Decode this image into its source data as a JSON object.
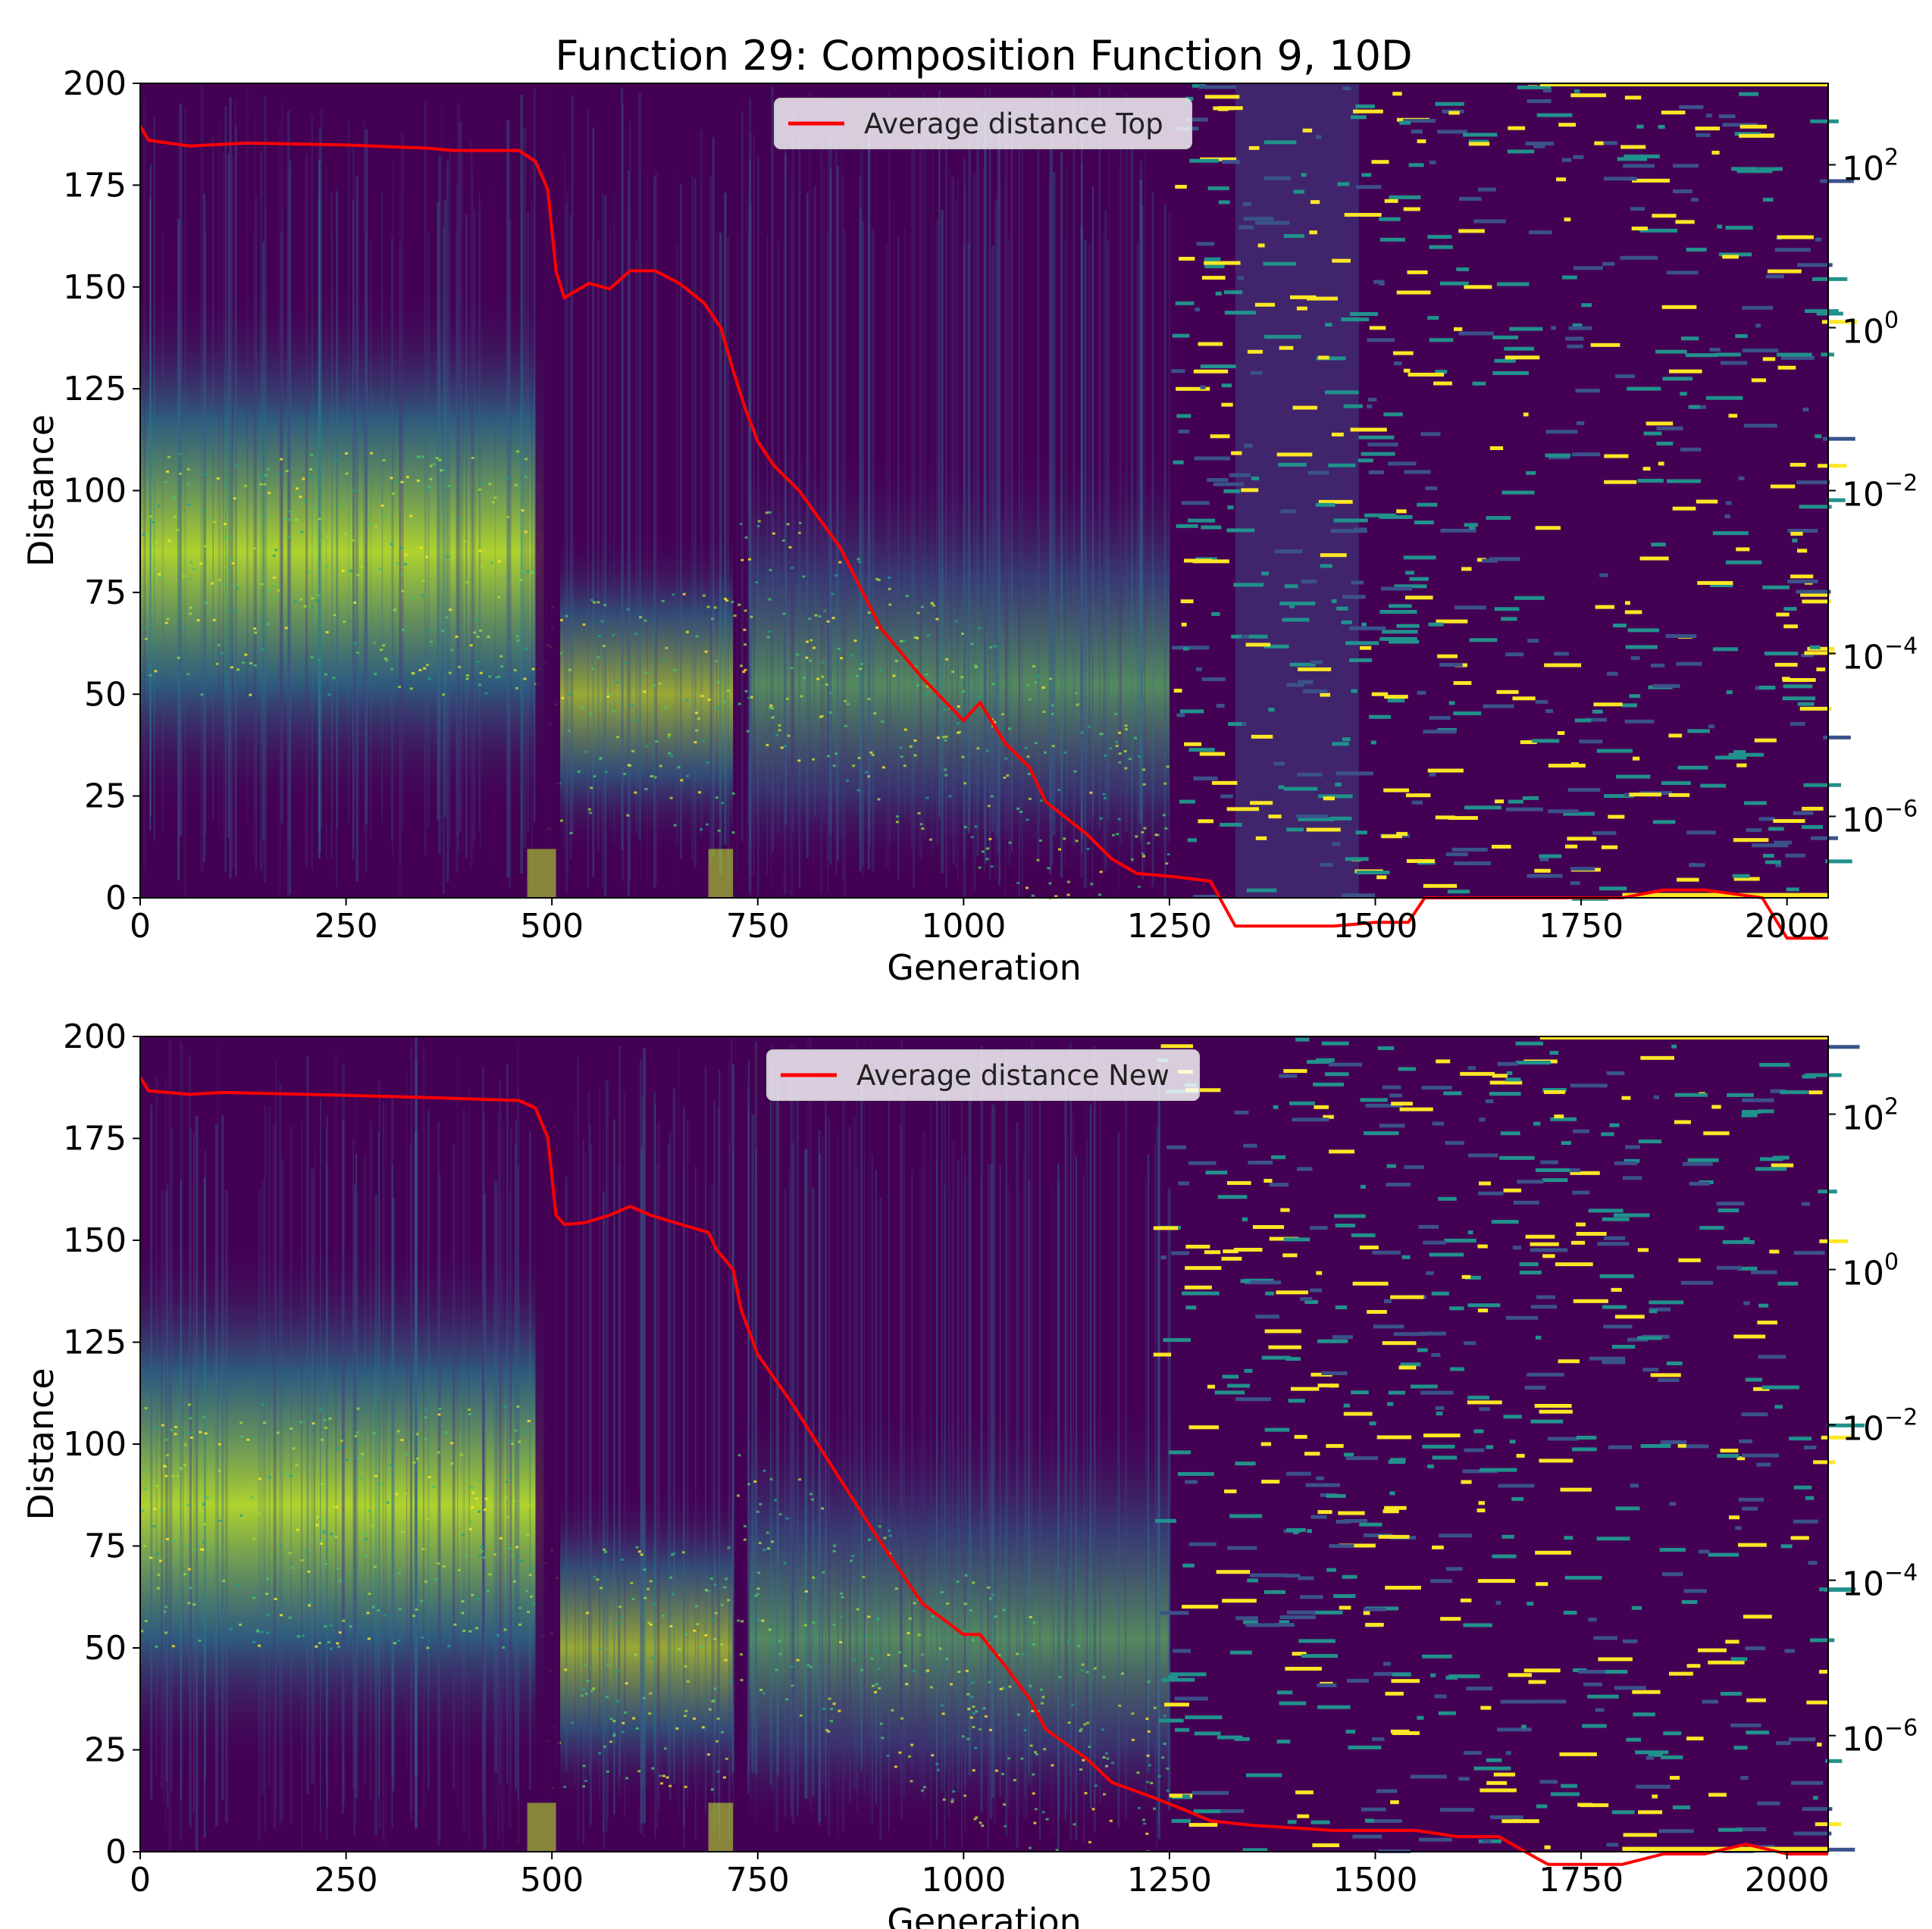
{
  "title": "Function 29: Composition Function 9, 10D",
  "chart_data": [
    {
      "type": "heatmap",
      "panel": "top",
      "xlabel": "Generation",
      "ylabel": "Distance",
      "xlim": [
        0,
        2050
      ],
      "ylim": [
        0,
        200
      ],
      "x_ticks": [
        "0",
        "250",
        "500",
        "750",
        "1000",
        "1250",
        "1500",
        "1750",
        "2000"
      ],
      "y_ticks": [
        "0",
        "25",
        "50",
        "75",
        "100",
        "125",
        "150",
        "175",
        "200"
      ],
      "y2_scale": "log",
      "y2_ticks": [
        {
          "base": "10",
          "exp": "2",
          "value": 100
        },
        {
          "base": "10",
          "exp": "0",
          "value": 1
        },
        {
          "base": "10",
          "exp": "−2",
          "value": 0.01
        },
        {
          "base": "10",
          "exp": "−4",
          "value": 0.0001
        },
        {
          "base": "10",
          "exp": "−6",
          "value": 1e-06
        }
      ],
      "y2lim": [
        1e-07,
        1000
      ],
      "colormap": "viridis",
      "legend": "top-center",
      "series": [
        {
          "name": "Average distance Top",
          "color": "#ff0000",
          "axis": "right",
          "x": [
            0,
            10,
            60,
            130,
            250,
            350,
            380,
            460,
            480,
            495,
            505,
            515,
            520,
            545,
            570,
            595,
            625,
            655,
            685,
            705,
            720,
            735,
            750,
            770,
            800,
            850,
            900,
            950,
            1000,
            1020,
            1050,
            1080,
            1100,
            1150,
            1180,
            1210,
            1260,
            1300,
            1330,
            1450,
            1500,
            1540,
            1560,
            1650,
            1700,
            1800,
            1850,
            1900,
            1970,
            2000,
            2050
          ],
          "y": [
            300,
            200,
            170,
            185,
            175,
            160,
            150,
            150,
            110,
            50,
            5,
            2.3,
            2.5,
            3.5,
            3,
            5,
            5,
            3.5,
            2,
            1,
            0.3,
            0.1,
            0.04,
            0.02,
            0.01,
            0.002,
            0.0002,
            5e-05,
            1.5e-05,
            2.5e-05,
            8e-06,
            4e-06,
            1.5e-06,
            6e-07,
            3e-07,
            2e-07,
            1.8e-07,
            1.6e-07,
            4.5e-08,
            4.5e-08,
            5e-08,
            5e-08,
            1e-07,
            1e-07,
            1e-07,
            1e-07,
            1.25e-07,
            1.25e-07,
            1e-07,
            3.2e-08,
            3.2e-08
          ]
        }
      ]
    },
    {
      "type": "heatmap",
      "panel": "bottom",
      "xlabel": "Generation",
      "ylabel": "Distance",
      "xlim": [
        0,
        2050
      ],
      "ylim": [
        0,
        200
      ],
      "x_ticks": [
        "0",
        "250",
        "500",
        "750",
        "1000",
        "1250",
        "1500",
        "1750",
        "2000"
      ],
      "y_ticks": [
        "0",
        "25",
        "50",
        "75",
        "100",
        "125",
        "150",
        "175",
        "200"
      ],
      "y2_scale": "log",
      "y2_ticks": [
        {
          "base": "10",
          "exp": "2",
          "value": 100
        },
        {
          "base": "10",
          "exp": "0",
          "value": 1
        },
        {
          "base": "10",
          "exp": "−2",
          "value": 0.01
        },
        {
          "base": "10",
          "exp": "−4",
          "value": 0.0001
        },
        {
          "base": "10",
          "exp": "−6",
          "value": 1e-06
        }
      ],
      "y2lim": [
        3.2e-08,
        1000
      ],
      "colormap": "viridis",
      "legend": "top-center",
      "series": [
        {
          "name": "Average distance New",
          "color": "#ff0000",
          "axis": "right",
          "x": [
            0,
            10,
            60,
            100,
            250,
            380,
            460,
            480,
            495,
            505,
            515,
            540,
            570,
            595,
            620,
            650,
            690,
            700,
            720,
            730,
            750,
            790,
            850,
            900,
            950,
            1000,
            1020,
            1050,
            1080,
            1100,
            1150,
            1180,
            1230,
            1260,
            1300,
            1350,
            1450,
            1500,
            1550,
            1600,
            1650,
            1700,
            1710,
            1800,
            1850,
            1900,
            1950,
            2000,
            2050
          ],
          "y": [
            300,
            200,
            180,
            190,
            175,
            160,
            150,
            120,
            50,
            5,
            3.8,
            4,
            5,
            6.5,
            5,
            4,
            3,
            1.8,
            1,
            0.3,
            0.08,
            0.02,
            0.002,
            0.0003,
            5e-05,
            2e-05,
            2e-05,
            8e-06,
            3e-06,
            1.2e-06,
            5e-07,
            2.5e-07,
            1.6e-07,
            1.2e-07,
            8e-08,
            7e-08,
            6e-08,
            6e-08,
            6e-08,
            5e-08,
            5e-08,
            2.5e-08,
            2.2e-08,
            2.2e-08,
            3e-08,
            3e-08,
            4e-08,
            3e-08,
            3e-08
          ]
        }
      ]
    }
  ]
}
